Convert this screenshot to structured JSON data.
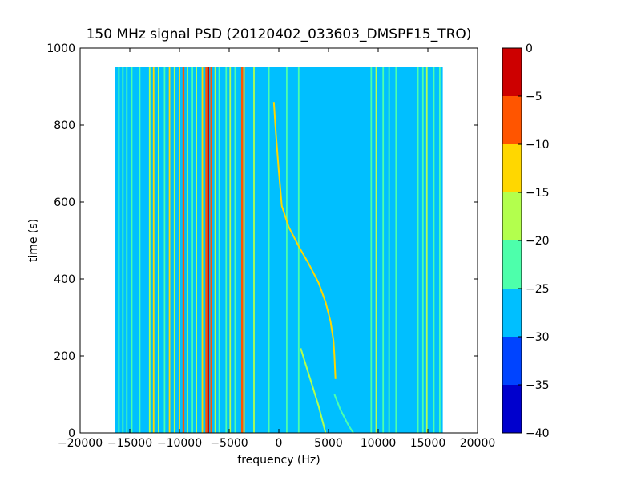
{
  "chart_data": {
    "type": "heatmap",
    "title": "150 MHz signal PSD (20120402_033603_DMSPF15_TRO)",
    "xlabel": "frequency (Hz)",
    "ylabel": "time (s)",
    "xlim": [
      -20000,
      20000
    ],
    "ylim": [
      0,
      1000
    ],
    "x_ticks": [
      -20000,
      -15000,
      -10000,
      -5000,
      0,
      5000,
      10000,
      15000,
      20000
    ],
    "x_tick_labels": [
      "−20000",
      "−15000",
      "−10000",
      "−5000",
      "0",
      "5000",
      "10000",
      "15000",
      "20000"
    ],
    "y_ticks": [
      0,
      200,
      400,
      600,
      800,
      1000
    ],
    "y_tick_labels": [
      "0",
      "200",
      "400",
      "600",
      "800",
      "1000"
    ],
    "data_extent": {
      "x": [
        -16500,
        16500
      ],
      "y": [
        0,
        950
      ]
    },
    "colorbar": {
      "range": [
        -40,
        0
      ],
      "ticks": [
        0,
        -5,
        -10,
        -15,
        -20,
        -25,
        -30,
        -35,
        -40
      ],
      "tick_labels": [
        "0",
        "−5",
        "−10",
        "−15",
        "−20",
        "−25",
        "−30",
        "−35",
        "−40"
      ],
      "levels": [
        {
          "min": -40,
          "max": -35,
          "color": "#0000cd"
        },
        {
          "min": -35,
          "max": -30,
          "color": "#0044ff"
        },
        {
          "min": -30,
          "max": -25,
          "color": "#00bfff"
        },
        {
          "min": -25,
          "max": -20,
          "color": "#4dffab"
        },
        {
          "min": -20,
          "max": -15,
          "color": "#b3ff4d"
        },
        {
          "min": -15,
          "max": -10,
          "color": "#ffd700"
        },
        {
          "min": -10,
          "max": -5,
          "color": "#ff5500"
        },
        {
          "min": -5,
          "max": 0,
          "color": "#cd0000"
        }
      ]
    },
    "background_level": -27.5,
    "vertical_lines": [
      {
        "x": -16100,
        "level": -22.5
      },
      {
        "x": -15700,
        "level": -22.5
      },
      {
        "x": -15300,
        "level": -22.5
      },
      {
        "x": -14800,
        "level": -22.5
      },
      {
        "x": -14000,
        "level": -22.5
      },
      {
        "x": -13000,
        "level": -17.5
      },
      {
        "x": -12600,
        "level": -12.5
      },
      {
        "x": -12100,
        "level": -17.5
      },
      {
        "x": -11500,
        "level": -22.5
      },
      {
        "x": -11000,
        "level": -12.5
      },
      {
        "x": -10500,
        "level": -17.5
      },
      {
        "x": -10000,
        "level": -12.5
      },
      {
        "x": -9600,
        "level": -7.5
      },
      {
        "x": -9200,
        "level": -17.5
      },
      {
        "x": -8700,
        "level": -22.5
      },
      {
        "x": -8300,
        "level": -17.5
      },
      {
        "x": -7700,
        "level": -12.5
      },
      {
        "x": -7300,
        "level": -7.5
      },
      {
        "x": -7100,
        "level": -2.5
      },
      {
        "x": -6800,
        "level": -7.5
      },
      {
        "x": -6400,
        "level": -17.5
      },
      {
        "x": -6000,
        "level": -22.5
      },
      {
        "x": -5300,
        "level": -22.5
      },
      {
        "x": -4900,
        "level": -17.5
      },
      {
        "x": -4400,
        "level": -22.5
      },
      {
        "x": -3700,
        "level": -7.5
      },
      {
        "x": -3500,
        "level": -12.5
      },
      {
        "x": -2500,
        "level": -17.5
      },
      {
        "x": -1000,
        "level": -22.5
      },
      {
        "x": 800,
        "level": -22.5
      },
      {
        "x": 2000,
        "level": -22.5
      },
      {
        "x": 9300,
        "level": -22.5
      },
      {
        "x": 9800,
        "level": -17.5
      },
      {
        "x": 10500,
        "level": -22.5
      },
      {
        "x": 11100,
        "level": -22.5
      },
      {
        "x": 11800,
        "level": -22.5
      },
      {
        "x": 14000,
        "level": -22.5
      },
      {
        "x": 14500,
        "level": -22.5
      },
      {
        "x": 14900,
        "level": -17.5
      },
      {
        "x": 15600,
        "level": -22.5
      },
      {
        "x": 16200,
        "level": -22.5
      }
    ],
    "doppler_traces": [
      {
        "name": "",
        "level": -12.5,
        "points": [
          [
            -500,
            860
          ],
          [
            -300,
            780
          ],
          [
            0,
            680
          ],
          [
            300,
            590
          ],
          [
            1000,
            535
          ],
          [
            2000,
            485
          ],
          [
            3000,
            440
          ],
          [
            4000,
            390
          ],
          [
            4700,
            340
          ],
          [
            5200,
            290
          ],
          [
            5500,
            240
          ],
          [
            5600,
            200
          ],
          [
            5700,
            140
          ]
        ]
      },
      {
        "name": "",
        "level": -17.5,
        "points": [
          [
            2200,
            220
          ],
          [
            2800,
            170
          ],
          [
            3400,
            120
          ],
          [
            4000,
            70
          ],
          [
            4400,
            30
          ],
          [
            4700,
            0
          ]
        ]
      },
      {
        "name": "",
        "level": -22.5,
        "points": [
          [
            5600,
            100
          ],
          [
            6200,
            60
          ],
          [
            7000,
            20
          ],
          [
            7500,
            0
          ]
        ]
      }
    ]
  }
}
